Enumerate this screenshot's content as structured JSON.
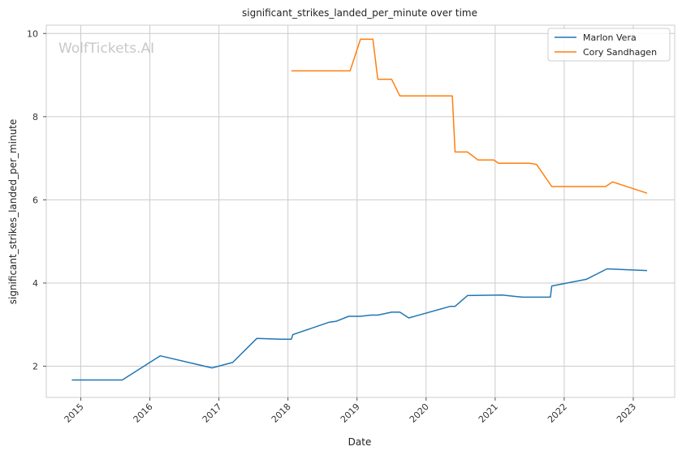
{
  "chart_data": {
    "type": "line",
    "title": "significant_strikes_landed_per_minute over time",
    "xlabel": "Date",
    "ylabel": "significant_strikes_landed_per_minute",
    "xlim": [
      2014.5,
      2023.6
    ],
    "ylim": [
      1.25,
      10.2
    ],
    "x_ticks": [
      "2015",
      "2016",
      "2017",
      "2018",
      "2019",
      "2020",
      "2021",
      "2022",
      "2023"
    ],
    "y_ticks": [
      "2",
      "4",
      "6",
      "8",
      "10"
    ],
    "grid": true,
    "legend_position": "upper-right",
    "watermark": "WolfTickets.AI",
    "series": [
      {
        "name": "Marlon Vera",
        "color": "#1f77b4",
        "points": [
          [
            2014.87,
            1.67
          ],
          [
            2015.6,
            1.67
          ],
          [
            2016.15,
            2.25
          ],
          [
            2016.9,
            1.96
          ],
          [
            2017.2,
            2.09
          ],
          [
            2017.55,
            2.67
          ],
          [
            2017.9,
            2.65
          ],
          [
            2018.05,
            2.65
          ],
          [
            2018.07,
            2.76
          ],
          [
            2018.6,
            3.06
          ],
          [
            2018.7,
            3.08
          ],
          [
            2018.88,
            3.2
          ],
          [
            2019.05,
            3.2
          ],
          [
            2019.2,
            3.23
          ],
          [
            2019.3,
            3.23
          ],
          [
            2019.5,
            3.3
          ],
          [
            2019.62,
            3.3
          ],
          [
            2019.75,
            3.16
          ],
          [
            2020.35,
            3.44
          ],
          [
            2020.42,
            3.44
          ],
          [
            2020.6,
            3.7
          ],
          [
            2021.1,
            3.71
          ],
          [
            2021.4,
            3.66
          ],
          [
            2021.8,
            3.66
          ],
          [
            2021.82,
            3.93
          ],
          [
            2022.32,
            4.09
          ],
          [
            2022.62,
            4.34
          ],
          [
            2023.2,
            4.3
          ]
        ]
      },
      {
        "name": "Cory Sandhagen",
        "color": "#ff7f0e",
        "points": [
          [
            2018.05,
            9.1
          ],
          [
            2018.9,
            9.1
          ],
          [
            2019.05,
            9.86
          ],
          [
            2019.23,
            9.86
          ],
          [
            2019.3,
            8.9
          ],
          [
            2019.5,
            8.9
          ],
          [
            2019.62,
            8.5
          ],
          [
            2020.38,
            8.5
          ],
          [
            2020.42,
            7.15
          ],
          [
            2020.6,
            7.15
          ],
          [
            2020.75,
            6.96
          ],
          [
            2020.98,
            6.96
          ],
          [
            2021.05,
            6.88
          ],
          [
            2021.5,
            6.88
          ],
          [
            2021.6,
            6.85
          ],
          [
            2021.82,
            6.32
          ],
          [
            2022.6,
            6.32
          ],
          [
            2022.7,
            6.43
          ],
          [
            2023.2,
            6.16
          ]
        ]
      }
    ]
  }
}
